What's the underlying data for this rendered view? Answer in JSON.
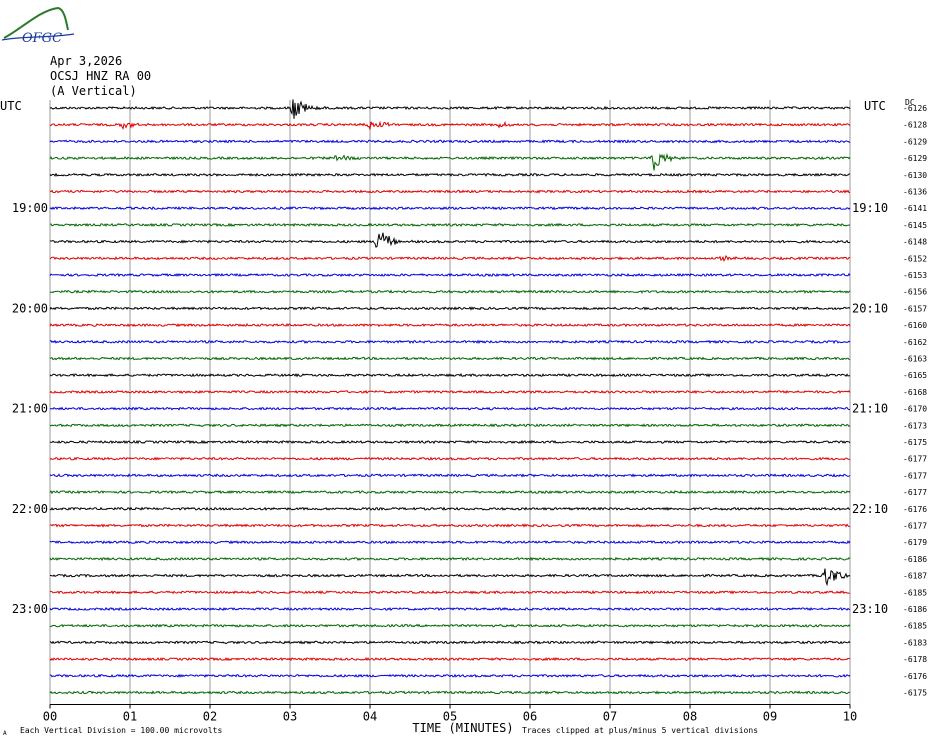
{
  "logo": {
    "text": "OFGC"
  },
  "header": {
    "date": "Apr 3,2026",
    "station": "OCSJ HNZ RA 00",
    "component": "(A Vertical)"
  },
  "axes": {
    "left_tz": "UTC",
    "right_tz": "UTC",
    "right_col_header": "DC",
    "xlabel": "TIME (MINUTES)",
    "footer_left": "Each Vertical Division =  100.00 microvolts",
    "footer_right": "Traces clipped at plus/minus 5 vertical divisions",
    "footer_marker": "A"
  },
  "colors": {
    "cycle": [
      "#000000",
      "#dd0000",
      "#0000dd",
      "#006600"
    ],
    "grid": "#999999"
  },
  "chart_data": {
    "type": "line",
    "title": "",
    "xlabel": "TIME (MINUTES)",
    "ylabel": "",
    "x_ticks": [
      "00",
      "01",
      "02",
      "03",
      "04",
      "05",
      "06",
      "07",
      "08",
      "09",
      "10"
    ],
    "xlim": [
      0,
      10
    ],
    "grid": true,
    "trace_count": 36,
    "left_time_labels": [
      {
        "row": 6,
        "text": "19:00"
      },
      {
        "row": 12,
        "text": "20:00"
      },
      {
        "row": 18,
        "text": "21:00"
      },
      {
        "row": 24,
        "text": "22:00"
      },
      {
        "row": 30,
        "text": "23:00"
      }
    ],
    "right_time_labels": [
      {
        "row": 6,
        "text": "19:10"
      },
      {
        "row": 12,
        "text": "20:10"
      },
      {
        "row": 18,
        "text": "21:10"
      },
      {
        "row": 24,
        "text": "22:10"
      },
      {
        "row": 30,
        "text": "23:10"
      }
    ],
    "dc_offsets": [
      "-6126",
      "-6128",
      "-6129",
      "-6129",
      "-6130",
      "-6136",
      "-6141",
      "-6145",
      "-6148",
      "-6152",
      "-6153",
      "-6156",
      "-6157",
      "-6160",
      "-6162",
      "-6163",
      "-6165",
      "-6168",
      "-6170",
      "-6173",
      "-6175",
      "-6177",
      "-6177",
      "-6177",
      "-6176",
      "-6177",
      "-6179",
      "-6186",
      "-6187",
      "-6185",
      "-6186",
      "-6185",
      "-6183",
      "-6178",
      "-6176",
      "-6175"
    ],
    "events": [
      {
        "row": 0,
        "minute": 3.05,
        "amplitude": 1.0
      },
      {
        "row": 1,
        "minute": 0.9,
        "amplitude": 0.3
      },
      {
        "row": 1,
        "minute": 4.0,
        "amplitude": 0.5
      },
      {
        "row": 1,
        "minute": 5.6,
        "amplitude": 0.25
      },
      {
        "row": 3,
        "minute": 3.6,
        "amplitude": 0.4
      },
      {
        "row": 3,
        "minute": 7.55,
        "amplitude": 1.0
      },
      {
        "row": 8,
        "minute": 4.1,
        "amplitude": 1.3
      },
      {
        "row": 9,
        "minute": 8.4,
        "amplitude": 0.2
      },
      {
        "row": 28,
        "minute": 9.7,
        "amplitude": 1.1
      }
    ]
  }
}
